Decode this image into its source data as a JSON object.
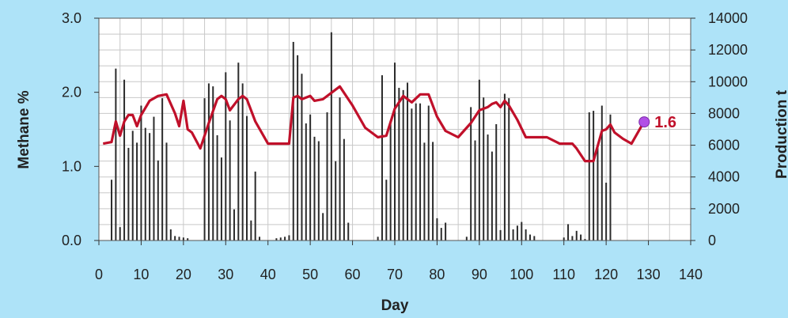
{
  "chart_data": {
    "type": "bar+line",
    "xlabel": "Day",
    "ylabel_left": "Methane %",
    "ylabel_right": "Production t",
    "xlim": [
      0,
      140
    ],
    "ylim_left": [
      0,
      3
    ],
    "ylim_right": [
      0,
      14000
    ],
    "x_ticks": [
      "0",
      "10",
      "20",
      "30",
      "40",
      "50",
      "60",
      "70",
      "80",
      "90",
      "100",
      "110",
      "120",
      "130",
      "140"
    ],
    "y_left_ticks": [
      "0.0",
      "1.0",
      "2.0",
      "3.0"
    ],
    "y_right_ticks": [
      "0",
      "2000",
      "4000",
      "6000",
      "8000",
      "10000",
      "12000",
      "14000"
    ],
    "grid": true,
    "colors": {
      "background": "#aee3f8",
      "plot": "#ffffff",
      "grid": "#c8c8c8",
      "bars": "#2b2b2b",
      "line": "#c0102a",
      "marker": "#b14fe6",
      "callout": "#c0102a"
    },
    "series": [
      {
        "kind": "bar",
        "axis": "left",
        "x": [
          3,
          4,
          5,
          6,
          7,
          8,
          9,
          10,
          11,
          12,
          13,
          14,
          15,
          16,
          17,
          18,
          19,
          20,
          21,
          25,
          26,
          27,
          28,
          29,
          30,
          31,
          32,
          33,
          34,
          35,
          36,
          37,
          38,
          42,
          43,
          44,
          45,
          46,
          47,
          48,
          49,
          50,
          51,
          52,
          53,
          54,
          55,
          56,
          57,
          58,
          59,
          66,
          67,
          68,
          69,
          70,
          71,
          72,
          73,
          74,
          75,
          76,
          77,
          78,
          79,
          80,
          81,
          82,
          87,
          88,
          89,
          90,
          91,
          92,
          93,
          94,
          95,
          96,
          97,
          98,
          99,
          100,
          101,
          102,
          103,
          110,
          111,
          112,
          113,
          114,
          115,
          116,
          117,
          118,
          119,
          120,
          121
        ],
        "y": [
          0.82,
          2.32,
          0.18,
          2.17,
          1.25,
          1.48,
          1.32,
          1.82,
          1.52,
          1.45,
          1.67,
          1.08,
          1.92,
          1.32,
          0.15,
          0.06,
          0.05,
          0.04,
          0.03,
          1.92,
          2.12,
          2.08,
          1.42,
          1.12,
          2.27,
          1.62,
          0.42,
          2.4,
          2.12,
          1.68,
          0.27,
          0.93,
          0.05,
          0.03,
          0.04,
          0.05,
          0.07,
          2.68,
          2.5,
          2.25,
          1.58,
          1.7,
          1.4,
          1.34,
          0.37,
          1.73,
          2.81,
          1.07,
          1.93,
          1.37,
          0.24,
          0.05,
          2.23,
          0.82,
          1.58,
          2.4,
          2.06,
          2.03,
          2.13,
          1.78,
          1.85,
          1.85,
          1.32,
          1.82,
          1.33,
          0.3,
          0.17,
          0.24,
          0.05,
          1.8,
          1.35,
          2.17,
          1.93,
          1.43,
          1.2,
          1.57,
          0.14,
          1.98,
          1.92,
          0.15,
          0.2,
          0.25,
          0.15,
          0.08,
          0.06,
          0.04,
          0.22,
          0.06,
          0.13,
          0.08,
          0.02,
          1.73,
          1.75,
          1.26,
          1.82,
          0.78,
          1.7
        ]
      },
      {
        "kind": "line",
        "axis": "right",
        "x": [
          1,
          3,
          4,
          5,
          6,
          7,
          8,
          9,
          10,
          12,
          14,
          16,
          18,
          19,
          20,
          21,
          22,
          24,
          26,
          28,
          29,
          30,
          31,
          33,
          34,
          35,
          37,
          40,
          45,
          46,
          47,
          48,
          50,
          51,
          53,
          55,
          57,
          60,
          63,
          66,
          68,
          70,
          72,
          74,
          76,
          78,
          80,
          82,
          85,
          88,
          90,
          92,
          93,
          94,
          95,
          96,
          97,
          99,
          101,
          106,
          109,
          112,
          113,
          115,
          117,
          119,
          120,
          121,
          122,
          124,
          126,
          129
        ],
        "y": [
          6100,
          6200,
          7500,
          6600,
          7500,
          7900,
          7900,
          7200,
          7900,
          8800,
          9100,
          9200,
          8000,
          7200,
          8800,
          7000,
          6800,
          5800,
          7400,
          8900,
          9100,
          8900,
          8200,
          8900,
          9100,
          8900,
          7500,
          6100,
          6100,
          9000,
          9100,
          8900,
          9100,
          8800,
          8900,
          9300,
          9700,
          8500,
          7100,
          6500,
          6600,
          8300,
          9100,
          8700,
          9200,
          9200,
          7800,
          6900,
          6500,
          7400,
          8200,
          8400,
          8600,
          8700,
          8400,
          8800,
          8500,
          7600,
          6500,
          6500,
          6100,
          6100,
          5800,
          5000,
          5000,
          6900,
          7000,
          7300,
          6800,
          6400,
          6100,
          7500
        ]
      }
    ],
    "highlight": {
      "x": 129,
      "y_left": 1.6,
      "label": "1.6"
    }
  }
}
